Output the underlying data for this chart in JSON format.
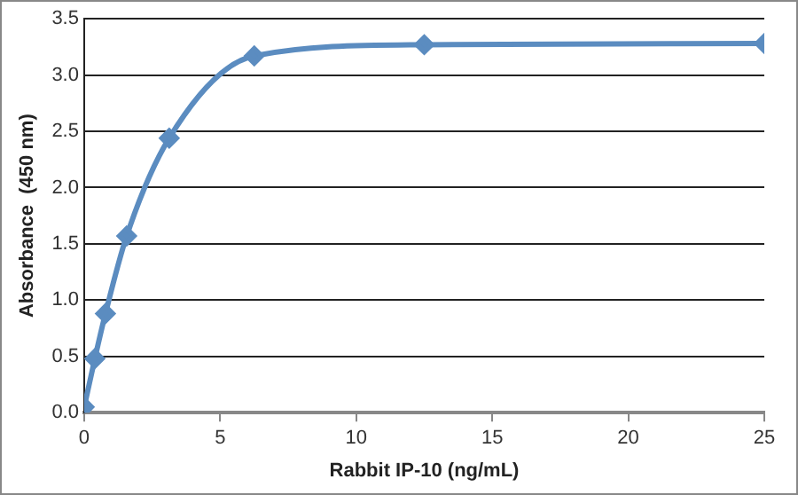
{
  "chart_data": {
    "type": "line",
    "xlabel": "Rabbit IP-10 (ng/mL)",
    "ylabel": "Absorbance  (450 nm)",
    "series": [
      {
        "color": "#5b8cc0",
        "x": [
          0,
          0.39,
          0.78,
          1.56,
          3.125,
          6.25,
          12.5,
          25
        ],
        "values": [
          0.05,
          0.48,
          0.88,
          1.57,
          2.44,
          3.17,
          3.27,
          3.28
        ]
      }
    ],
    "xlim": [
      0,
      25
    ],
    "xticks": [
      0,
      5,
      10,
      15,
      20,
      25
    ],
    "ylim": [
      0,
      3.5
    ],
    "yticks": [
      {
        "value": 0,
        "label": "0.0"
      },
      {
        "value": 0.5,
        "label": "0.5"
      },
      {
        "value": 1,
        "label": "1.0"
      },
      {
        "value": 1.5,
        "label": "1.5"
      },
      {
        "value": 2,
        "label": "2.0"
      },
      {
        "value": 2.5,
        "label": "2.5"
      },
      {
        "value": 3,
        "label": "3.0"
      },
      {
        "value": 3.5,
        "label": "3.5"
      }
    ],
    "grid": "y",
    "marker": "diamond",
    "line_style": "solid",
    "legend": false
  }
}
